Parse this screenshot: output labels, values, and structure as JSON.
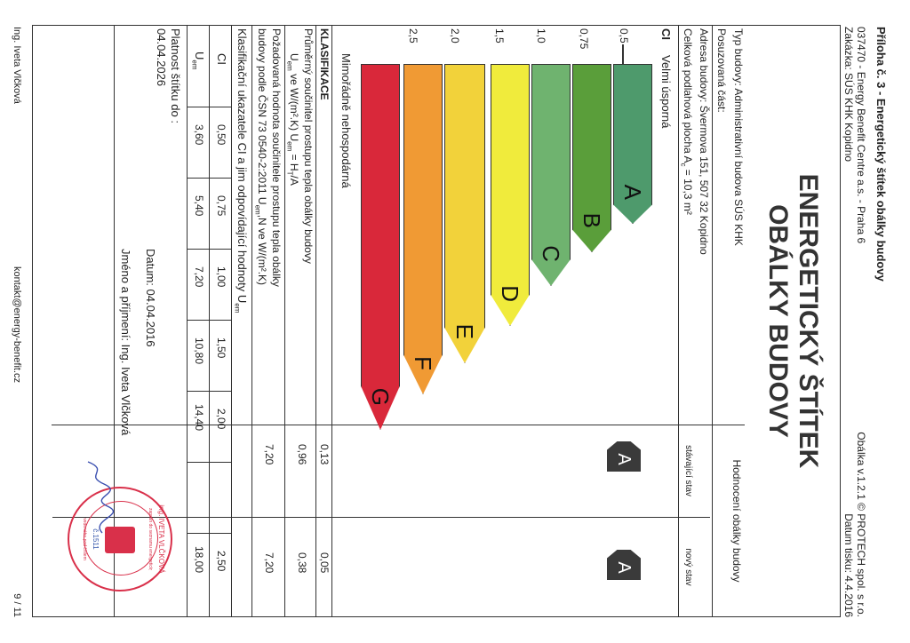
{
  "header": {
    "annex": "Příloha č. 3 - Energetický štítek obálky budovy",
    "company": "037470 - Energy Benefit Centre a.s. - Praha 6",
    "order": "Zakázka: SÚS KHK Kopidno",
    "software": "Obálka v.1.2.1 © PROTECH spol. s r.o.",
    "print_date": "Datum tisku: 4.4.2016"
  },
  "title": {
    "line1": "ENERGETICKÝ ŠTÍTEK",
    "line2": "OBÁLKY BUDOVY"
  },
  "info": {
    "type_label": "Typ budovy: Administrativní budova SÚS KHK",
    "part_label": "Posuzovaná část:",
    "address_label": "Adresa budovy: Švermova 151, 507 32 Kopidno",
    "area_label": "Celková podlahová plocha A",
    "area_sub": "c",
    "area_value": " = 10,3 m²"
  },
  "rating_header": {
    "title": "Hodnocení obálky budovy",
    "existing": "stávající stav",
    "new": "nový stav"
  },
  "scale": {
    "top_label": "Velmi úsporná",
    "ci": "CI",
    "bottom_label": "Mimořádně nehospodárná",
    "ticks": [
      "0,5",
      "0,75",
      "1,0",
      "1,5",
      "2,0",
      "2,5"
    ],
    "classes": [
      {
        "letter": "A",
        "color": "#4e9a6c"
      },
      {
        "letter": "B",
        "color": "#5a9e3a"
      },
      {
        "letter": "C",
        "color": "#6fb36f"
      },
      {
        "letter": "D",
        "color": "#f0eb3c"
      },
      {
        "letter": "E",
        "color": "#f2d23a"
      },
      {
        "letter": "F",
        "color": "#f09a34"
      },
      {
        "letter": "G",
        "color": "#d9283a"
      }
    ]
  },
  "badges": {
    "existing": "A",
    "new": "A"
  },
  "classification": {
    "heading": "KLASIFIKACE",
    "avg_label": "Průměrný součinitel prostupu tepla obálky budovy",
    "avg_units_a": "U",
    "avg_units_b": "em",
    "avg_units_c": " ve W/(m².K)     U",
    "avg_units_d": "em",
    "avg_units_e": " = H",
    "avg_units_f": "T",
    "avg_units_g": "/A",
    "req_label_1": "Požadovaná hodnota součinitele prostupu tepla obálky",
    "req_label_2": "budovy podle ČSN 73 0540-2:2011    U",
    "req_label_2b": "em",
    "req_label_2c": ",N ve W/(m².K)",
    "ci_row": "0,13",
    "ci_row_new": "0,05",
    "uem_existing": "0,96",
    "uem_new": "0,38",
    "req_existing": "7,20",
    "req_new": "7,20"
  },
  "table": {
    "heading": "Klasifikační ukazatele CI a jim odpovídající hodnoty U",
    "heading_sub": "em",
    "ci_label": "CI",
    "uem_label": "U",
    "uem_sub": "em",
    "ci_values": [
      "0,50",
      "0,75",
      "1,00",
      "1,50",
      "2,00",
      "2,50"
    ],
    "uem_values": [
      "3,60",
      "5,40",
      "7,20",
      "10,80",
      "14,40",
      "18,00"
    ]
  },
  "validity": {
    "label": "Platnost štítku do :",
    "date": "04.04.2026",
    "date_label": "Datum: 04.04.2016",
    "name": "Jméno a příjmení: Ing. Iveta Vlčková"
  },
  "footer": {
    "author": "Ing. Iveta Vlčková",
    "email": "kontakt@energy-benefit.cz",
    "page": "9 / 11"
  },
  "stamp": {
    "name": "ing. IVETA VLČKOVÁ",
    "text1": "zapsán do seznamu energetických specialistů",
    "number": "č.1511",
    "text2": "vedeného pod číslem"
  },
  "colors": {
    "stamp": "#d9304a",
    "badge": "#3a3a3a"
  }
}
